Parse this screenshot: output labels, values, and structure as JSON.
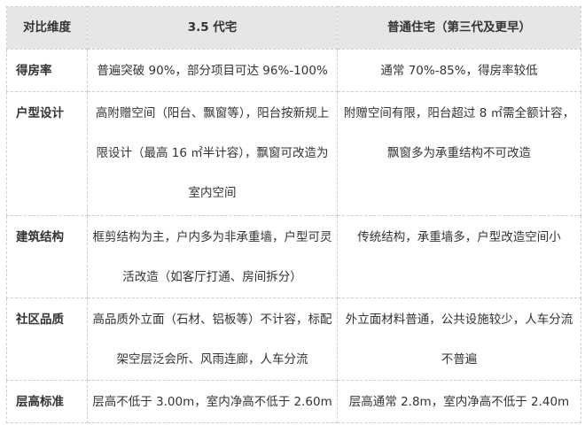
{
  "header": [
    "对比维度",
    "3.5 代宅",
    "普通住宅（第三代及更早）"
  ],
  "rows": [
    {
      "dimension": "得房率",
      "col1": [
        "普遍突破 90%，部分项目可达 96%-100%"
      ],
      "col2": [
        "通常 70%-85%，得房率较低"
      ]
    },
    {
      "dimension": "户型设计",
      "col1": [
        "高附赠空间（阳台、飘窗等），阳台按新规上",
        "限设计（最高 16 ㎡半计容），飘窗可改造为",
        "室内空间"
      ],
      "col2": [
        "附赠空间有限，阳台超过 8 ㎡需全额计容，",
        "飘窗多为承重结构不可改造"
      ]
    },
    {
      "dimension": "建筑结构",
      "col1": [
        "框剪结构为主，户内多为非承重墙，户型可灵",
        "活改造（如客厅打通、房间拆分）"
      ],
      "col2": [
        "传统结构，承重墙多，户型改造空间小"
      ]
    },
    {
      "dimension": "社区品质",
      "col1": [
        "高品质外立面（石材、铝板等）不计容，标配",
        "架空层泛会所、风雨连廊，人车分流"
      ],
      "col2": [
        "外立面材料普通，公共设施较少，人车分流",
        "不普遍"
      ]
    },
    {
      "dimension": "层高标准",
      "col1": [
        "层高不低于 3.00m，室内净高不低于 2.60m"
      ],
      "col2": [
        "层高通常 2.8m，室内净高不低于 2.40m"
      ]
    }
  ]
}
